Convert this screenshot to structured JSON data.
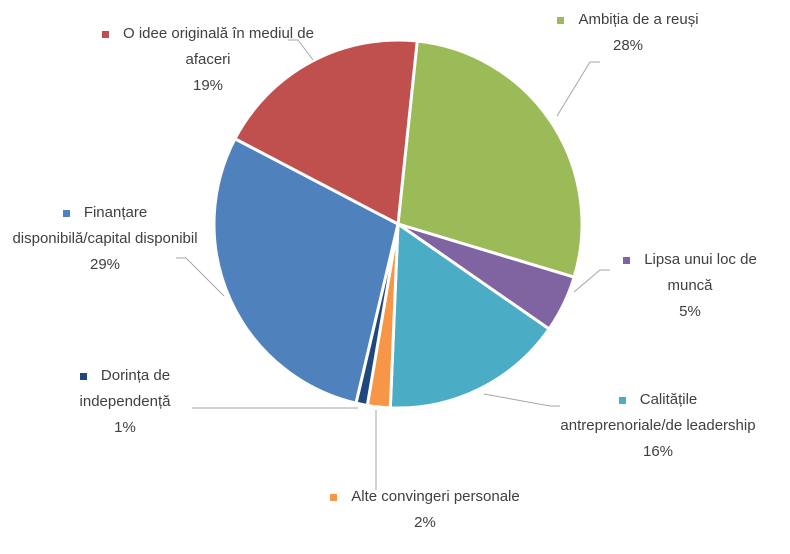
{
  "chart_data": {
    "type": "pie",
    "categories": [
      "Ambiția de a reuși",
      "Lipsa unui loc de muncă",
      "Calitățile antreprenoriale/de leadership",
      "Alte convingeri personale",
      "Dorința de independență",
      "Finanțare disponibilă/capital disponibil",
      "O idee originală în mediul de afaceri"
    ],
    "values": [
      28,
      5,
      16,
      2,
      1,
      29,
      19
    ],
    "value_labels": [
      "28%",
      "5%",
      "16%",
      "2%",
      "1%",
      "29%",
      "19%"
    ],
    "colors": [
      "#9bbb59",
      "#8064a2",
      "#4bacc6",
      "#f79646",
      "#1f497d",
      "#4f81bd",
      "#c0504d"
    ]
  }
}
